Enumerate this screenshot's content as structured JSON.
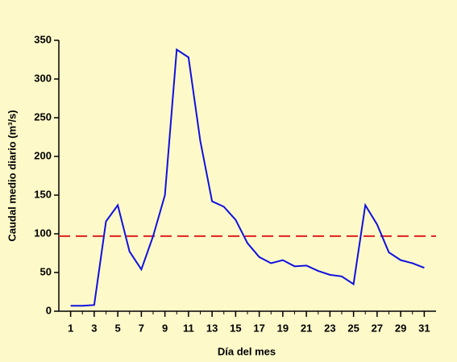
{
  "chart_data": {
    "type": "line",
    "x_label": "Día del mes",
    "y_label": "Caudal medio diario (m³/s)",
    "x": [
      1,
      2,
      3,
      4,
      5,
      6,
      7,
      8,
      9,
      10,
      11,
      12,
      13,
      14,
      15,
      16,
      17,
      18,
      19,
      20,
      21,
      22,
      23,
      24,
      25,
      26,
      27,
      28,
      29,
      30,
      31
    ],
    "series": [
      {
        "color": "#1010e0",
        "values": [
          7,
          7,
          8,
          116,
          137,
          77,
          54,
          97,
          150,
          338,
          328,
          220,
          142,
          135,
          118,
          88,
          70,
          62,
          66,
          58,
          59,
          52,
          47,
          45,
          35,
          137,
          112,
          76,
          66,
          62,
          56
        ]
      }
    ],
    "reference_line": 97,
    "reference_color": "#e02020",
    "xlim": [
      0,
      32
    ],
    "xticks": [
      1,
      3,
      5,
      7,
      9,
      11,
      13,
      15,
      17,
      19,
      21,
      23,
      25,
      27,
      29,
      31
    ],
    "ylim": [
      0,
      350
    ],
    "yticks": [
      0,
      50,
      100,
      150,
      200,
      250,
      300,
      350
    ]
  }
}
